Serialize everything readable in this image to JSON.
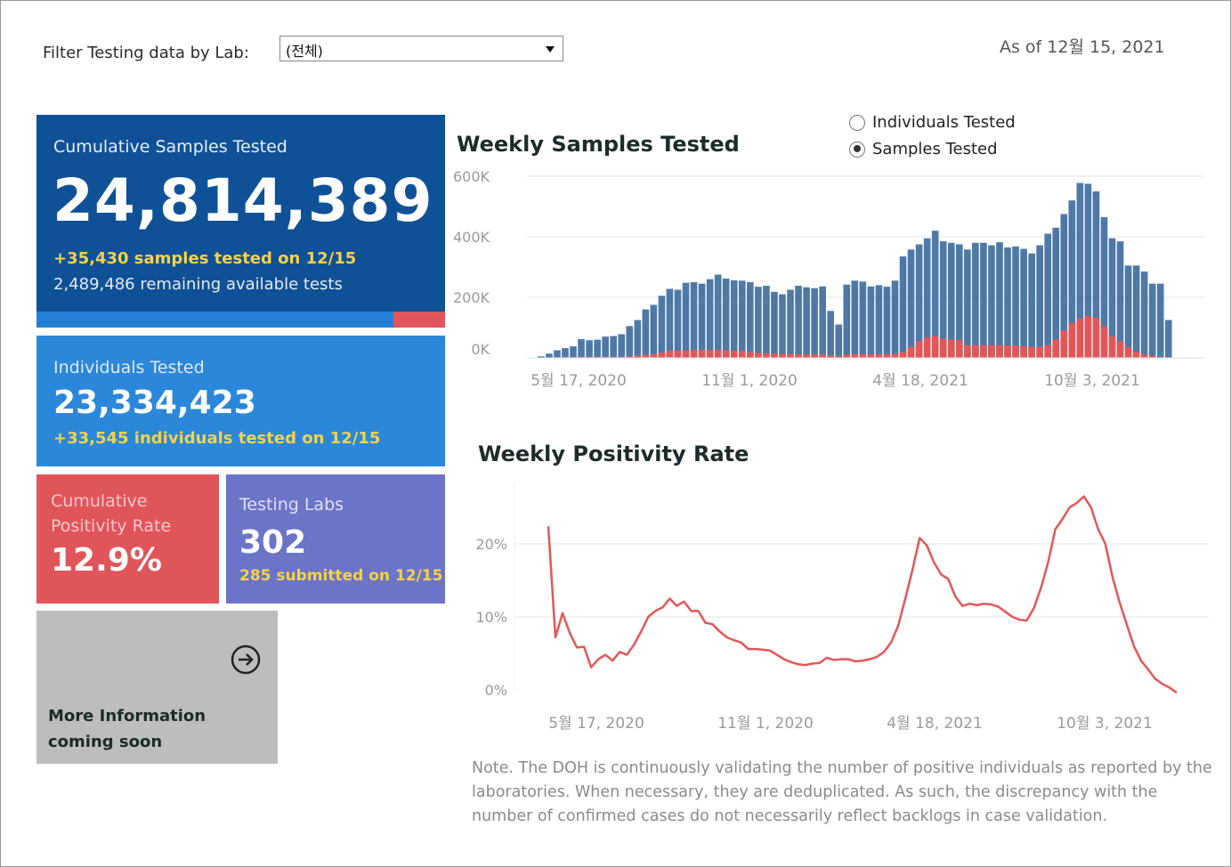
{
  "filter": {
    "label": "Filter Testing data by Lab:",
    "selected": "(전체)"
  },
  "as_of": "As of 12월 15, 2021",
  "tiles": {
    "cumulative": {
      "label": "Cumulative Samples Tested",
      "value": "24,814,389",
      "daily": "+35,430 samples tested on 12/15",
      "remaining": "2,489,486 remaining available tests",
      "remaining_share": 0.127
    },
    "individuals": {
      "label": "Individuals Tested",
      "value": "23,334,423",
      "daily": "+33,545  individuals  tested on 12/15"
    },
    "positivity": {
      "label": "Cumulative Positivity Rate",
      "value": "12.9%"
    },
    "labs": {
      "label": "Testing Labs",
      "value": "302",
      "submitted": "285 submitted on 12/15"
    },
    "more": {
      "text": "More Information coming soon",
      "icon": "arrow-right-circle-icon"
    }
  },
  "toggle": {
    "options": [
      "Individuals Tested",
      "Samples Tested"
    ],
    "selected": "Samples Tested"
  },
  "colors": {
    "samples": "#4e79a7",
    "positive": "#e15759",
    "dark_blue": "#0f5196",
    "blue": "#2b87da",
    "red": "#e0555a",
    "purple": "#6c74c8",
    "grey": "#bdbdbd"
  },
  "chart_data": [
    {
      "type": "bar",
      "title": "Weekly Samples Tested",
      "x_ticks": [
        "5월 17, 2020",
        "11월 1, 2020",
        "4월 18, 2021",
        "10월 3, 2021"
      ],
      "y_ticks": [
        "0K",
        "200K",
        "400K",
        "600K"
      ],
      "ylim": [
        0,
        600000
      ],
      "series": [
        {
          "name": "Samples Tested",
          "values": [
            1000,
            5000,
            14000,
            25000,
            32000,
            38000,
            62000,
            58000,
            60000,
            70000,
            72000,
            78000,
            105000,
            125000,
            160000,
            175000,
            205000,
            228000,
            225000,
            248000,
            250000,
            245000,
            260000,
            275000,
            262000,
            256000,
            255000,
            250000,
            235000,
            238000,
            218000,
            210000,
            225000,
            238000,
            233000,
            230000,
            236000,
            155000,
            110000,
            242000,
            255000,
            252000,
            236000,
            240000,
            235000,
            255000,
            335000,
            358000,
            375000,
            395000,
            420000,
            385000,
            380000,
            375000,
            358000,
            380000,
            380000,
            372000,
            382000,
            365000,
            368000,
            360000,
            345000,
            372000,
            410000,
            430000,
            475000,
            520000,
            578000,
            575000,
            550000,
            465000,
            395000,
            385000,
            305000,
            305000,
            285000,
            245000,
            245000,
            125000
          ]
        },
        {
          "name": "Positive",
          "values": [
            100,
            300,
            1200,
            2000,
            2500,
            2000,
            2800,
            2600,
            2800,
            3200,
            2800,
            3000,
            5000,
            7000,
            10000,
            12000,
            18000,
            24000,
            24000,
            24000,
            26000,
            26000,
            26000,
            26000,
            25000,
            23000,
            22000,
            19000,
            17000,
            15000,
            14000,
            13000,
            13000,
            12000,
            11000,
            11000,
            11000,
            8000,
            5000,
            11000,
            12000,
            12000,
            12000,
            12000,
            12000,
            13000,
            20000,
            35000,
            55000,
            68000,
            72000,
            62000,
            60000,
            58000,
            42000,
            42000,
            42000,
            42000,
            42000,
            41000,
            41000,
            38000,
            35000,
            36000,
            42000,
            60000,
            90000,
            115000,
            130000,
            138000,
            132000,
            103000,
            72000,
            55000,
            35000,
            20000,
            12000,
            6000,
            3000,
            1000
          ]
        }
      ]
    },
    {
      "type": "line",
      "title": "Weekly Positivity Rate",
      "x_ticks": [
        "5월 17, 2020",
        "11월 1, 2020",
        "4월 18, 2021",
        "10월 3, 2021"
      ],
      "y_ticks": [
        "0%",
        "10%",
        "20%"
      ],
      "ylim": [
        0,
        28
      ],
      "series": [
        {
          "name": "Positivity Rate",
          "values": [
            22.4,
            7.2,
            10.5,
            7.8,
            5.8,
            5.9,
            3.1,
            4.2,
            4.8,
            4.0,
            5.2,
            4.8,
            6.2,
            8.0,
            10.0,
            10.8,
            11.3,
            12.5,
            11.5,
            12.1,
            10.8,
            10.8,
            9.2,
            9.0,
            8.0,
            7.2,
            6.8,
            6.5,
            5.6,
            5.6,
            5.5,
            5.4,
            4.8,
            4.2,
            3.8,
            3.5,
            3.4,
            3.6,
            3.7,
            4.4,
            4.1,
            4.2,
            4.2,
            3.9,
            4.0,
            4.2,
            4.5,
            5.2,
            6.5,
            8.8,
            12.5,
            16.5,
            20.8,
            19.8,
            17.5,
            15.8,
            15.2,
            12.8,
            11.5,
            11.8,
            11.6,
            11.8,
            11.7,
            11.4,
            10.7,
            10.0,
            9.6,
            9.5,
            11.2,
            14.0,
            17.5,
            22.0,
            23.4,
            25.0,
            25.6,
            26.5,
            25.0,
            22.0,
            20.0,
            15.5,
            12.0,
            9.0,
            6.0,
            4.0,
            2.8,
            1.5,
            0.8,
            0.3,
            -0.4
          ]
        }
      ]
    }
  ],
  "note": "Note. The DOH is continuously validating the number of positive individuals as reported by the laboratories. When necessary, they are deduplicated. As such, the discrepancy with the number of confirmed cases do not necessarily reflect backlogs in case validation."
}
